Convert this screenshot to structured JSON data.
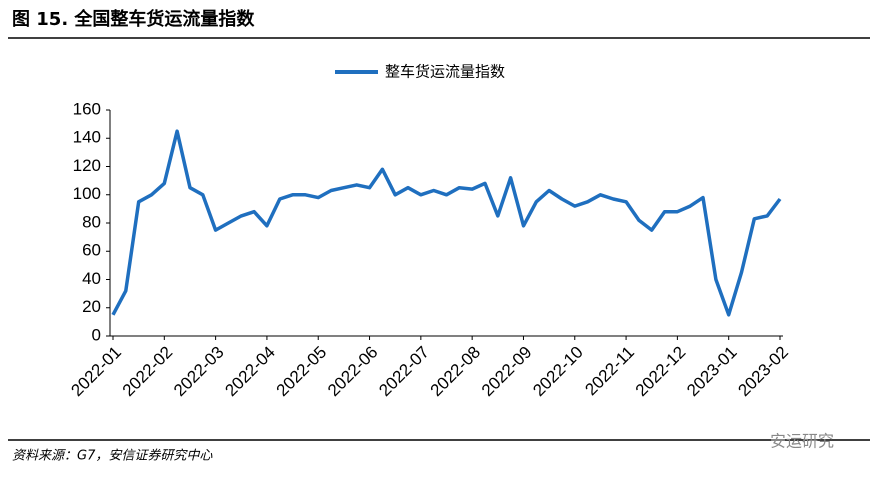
{
  "chart_data": {
    "type": "line",
    "title": "图 15. 全国整车货运流量指数",
    "source": "资料来源：G7，安信证券研究中心",
    "watermark": "安运研究",
    "categories": [
      "2022-01",
      null,
      null,
      null,
      "2022-02",
      null,
      null,
      null,
      "2022-03",
      null,
      null,
      null,
      "2022-04",
      null,
      null,
      null,
      "2022-05",
      null,
      null,
      null,
      "2022-06",
      null,
      null,
      null,
      "2022-07",
      null,
      null,
      null,
      "2022-08",
      null,
      null,
      null,
      "2022-09",
      null,
      null,
      null,
      "2022-10",
      null,
      null,
      null,
      "2022-11",
      null,
      null,
      null,
      "2022-12",
      null,
      null,
      null,
      "2023-01",
      null,
      null,
      null,
      "2023-02"
    ],
    "series": [
      {
        "name": "整车货运流量指数",
        "color": "#1f6fbf",
        "values": [
          15,
          32,
          95,
          100,
          108,
          145,
          105,
          100,
          75,
          80,
          85,
          88,
          78,
          97,
          100,
          100,
          98,
          103,
          105,
          107,
          105,
          118,
          100,
          105,
          100,
          103,
          100,
          105,
          104,
          108,
          85,
          112,
          78,
          95,
          103,
          97,
          92,
          95,
          100,
          97,
          95,
          82,
          75,
          88,
          88,
          92,
          98,
          40,
          15,
          45,
          83,
          85,
          97
        ]
      }
    ],
    "ylim": [
      0,
      160
    ],
    "yticks": [
      0,
      20,
      40,
      60,
      80,
      100,
      120,
      140,
      160
    ]
  }
}
